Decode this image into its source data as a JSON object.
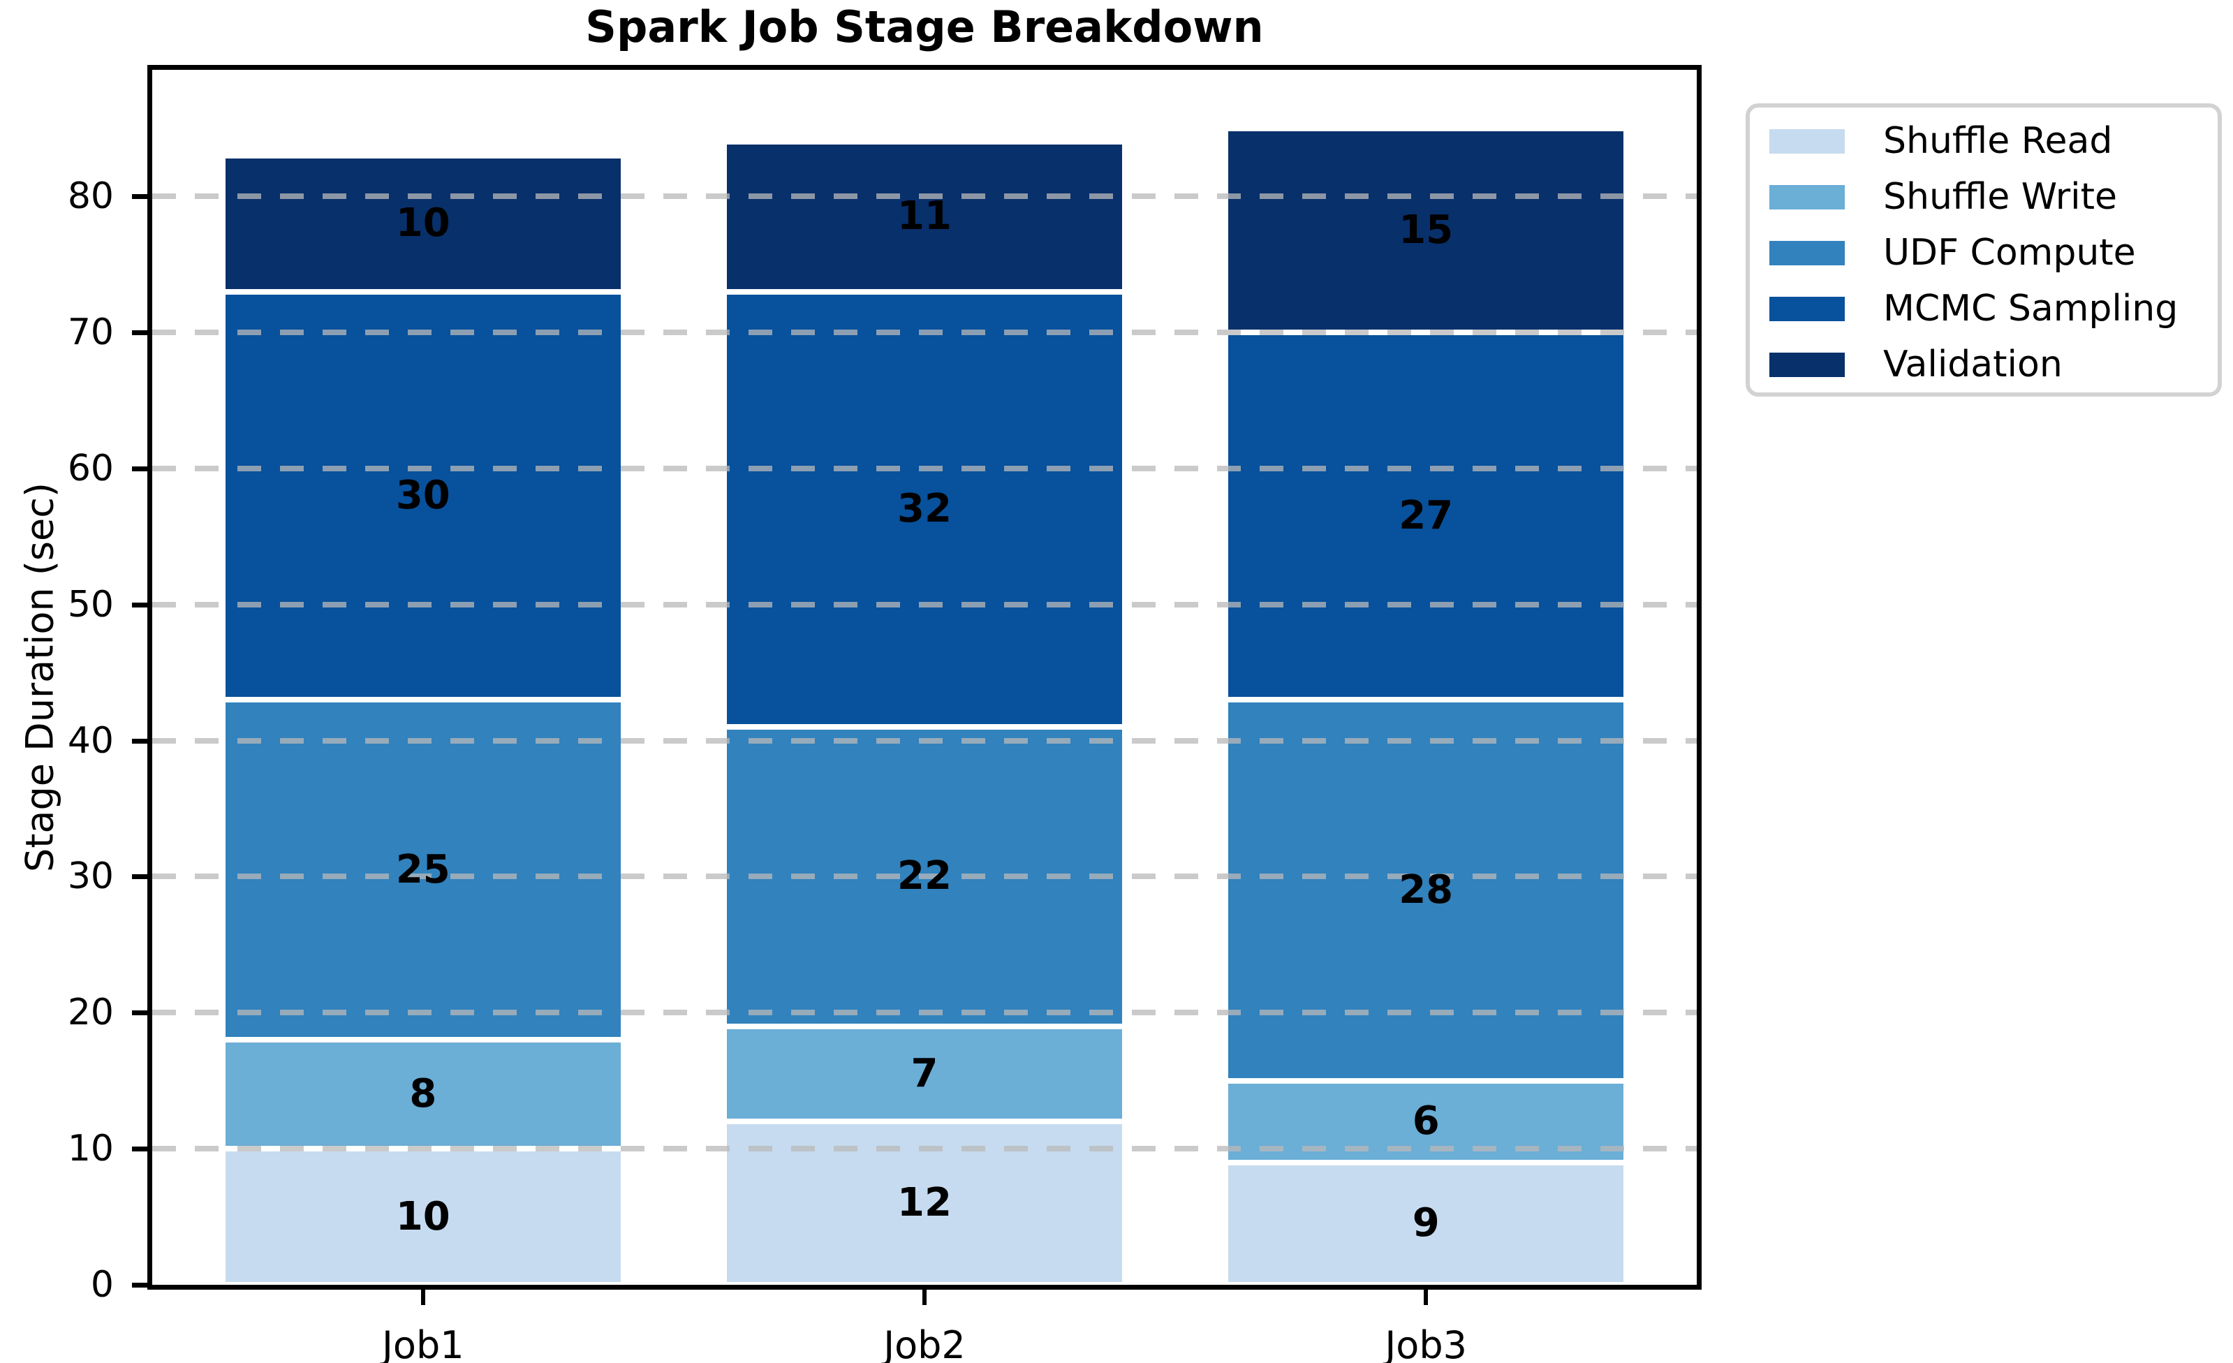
{
  "title": "Spark Job Stage Breakdown",
  "y_axis": {
    "label": "Stage Duration (sec)",
    "ticks": [
      0,
      10,
      20,
      30,
      40,
      50,
      60,
      70,
      80
    ]
  },
  "x_axis": {
    "ticks": [
      "Job1",
      "Job2",
      "Job3"
    ]
  },
  "legend": {
    "entries": [
      "Shuffle Read",
      "Shuffle Write",
      "UDF Compute",
      "MCMC Sampling",
      "Validation"
    ]
  },
  "colors": {
    "shuffle_read": "#c6dbef",
    "shuffle_write": "#6baed6",
    "udf_compute": "#3182bd",
    "mcmc_sampling": "#08519c",
    "validation": "#08306b",
    "gridline": "#b9b9b9",
    "axis": "#000000",
    "legend_border": "#d2d2d2"
  },
  "chart_data": {
    "type": "bar",
    "subtype": "stacked-vertical",
    "title": "Spark Job Stage Breakdown",
    "xlabel": "",
    "ylabel": "Stage Duration (sec)",
    "categories": [
      "Job1",
      "Job2",
      "Job3"
    ],
    "series": [
      {
        "name": "Shuffle Read",
        "color": "#c6dbef",
        "values": [
          10,
          12,
          9
        ]
      },
      {
        "name": "Shuffle Write",
        "color": "#6baed6",
        "values": [
          8,
          7,
          6
        ]
      },
      {
        "name": "UDF Compute",
        "color": "#3182bd",
        "values": [
          25,
          22,
          28
        ]
      },
      {
        "name": "MCMC Sampling",
        "color": "#08519c",
        "values": [
          30,
          32,
          27
        ]
      },
      {
        "name": "Validation",
        "color": "#08306b",
        "values": [
          10,
          11,
          15
        ]
      }
    ],
    "stack_totals": [
      83,
      84,
      85
    ],
    "yticks": [
      0,
      10,
      20,
      30,
      40,
      50,
      60,
      70,
      80
    ],
    "ylim": [
      0,
      89.3
    ],
    "grid": "horizontal dashed gray, drawn above bars",
    "legend_position": "outside upper right",
    "bar_value_labels": "each segment labeled with its value, bold black, centered"
  }
}
